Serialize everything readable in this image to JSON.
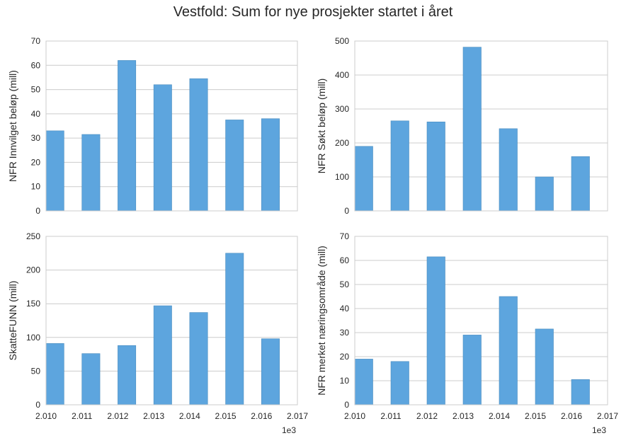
{
  "figure": {
    "title": "Vestfold: Sum for nye prosjekter startet i året",
    "x_offset_label": "1e3"
  },
  "colors": {
    "bar": "#5DA5DE",
    "bar_edge": "#4a8cbf",
    "grid": "#cccccc",
    "frame": "#cccccc"
  },
  "chart_data": [
    {
      "type": "bar",
      "ylabel": "NFR Innvilget beløp (mill)",
      "xlabel": "",
      "x": [
        2010,
        2011,
        2012,
        2013,
        2014,
        2015,
        2016
      ],
      "values": [
        33,
        31.5,
        62,
        52,
        54.5,
        37.5,
        38
      ],
      "ylim": [
        0,
        70
      ],
      "yticks": [
        0,
        10,
        20,
        30,
        40,
        50,
        60,
        70
      ],
      "xlim": [
        2010,
        2017
      ],
      "xticks": [
        "2.010",
        "2.011",
        "2.012",
        "2.013",
        "2.014",
        "2.015",
        "2.016",
        "2.017"
      ],
      "show_xticklabels": false,
      "grid": true
    },
    {
      "type": "bar",
      "ylabel": "NFR Søkt beløp (mill)",
      "xlabel": "",
      "x": [
        2010,
        2011,
        2012,
        2013,
        2014,
        2015,
        2016
      ],
      "values": [
        190,
        265,
        262,
        482,
        242,
        100,
        160
      ],
      "ylim": [
        0,
        500
      ],
      "yticks": [
        0,
        100,
        200,
        300,
        400,
        500
      ],
      "xlim": [
        2010,
        2017
      ],
      "xticks": [
        "2.010",
        "2.011",
        "2.012",
        "2.013",
        "2.014",
        "2.015",
        "2.016",
        "2.017"
      ],
      "show_xticklabels": false,
      "grid": true
    },
    {
      "type": "bar",
      "ylabel": "SkatteFUNN (mill)",
      "xlabel": "",
      "x": [
        2010,
        2011,
        2012,
        2013,
        2014,
        2015,
        2016
      ],
      "values": [
        91,
        76,
        88,
        147,
        137,
        225,
        98
      ],
      "ylim": [
        0,
        250
      ],
      "yticks": [
        0,
        50,
        100,
        150,
        200,
        250
      ],
      "xlim": [
        2010,
        2017
      ],
      "xticks": [
        "2.010",
        "2.011",
        "2.012",
        "2.013",
        "2.014",
        "2.015",
        "2.016",
        "2.017"
      ],
      "show_xticklabels": true,
      "grid": true
    },
    {
      "type": "bar",
      "ylabel": "NFR merket næringsområde (mill)",
      "xlabel": "",
      "x": [
        2010,
        2011,
        2012,
        2013,
        2014,
        2015,
        2016
      ],
      "values": [
        19,
        18,
        61.5,
        29,
        45,
        31.5,
        10.5
      ],
      "ylim": [
        0,
        70
      ],
      "yticks": [
        0,
        10,
        20,
        30,
        40,
        50,
        60,
        70
      ],
      "xlim": [
        2010,
        2017
      ],
      "xticks": [
        "2.010",
        "2.011",
        "2.012",
        "2.013",
        "2.014",
        "2.015",
        "2.016",
        "2.017"
      ],
      "show_xticklabels": true,
      "grid": true
    }
  ]
}
